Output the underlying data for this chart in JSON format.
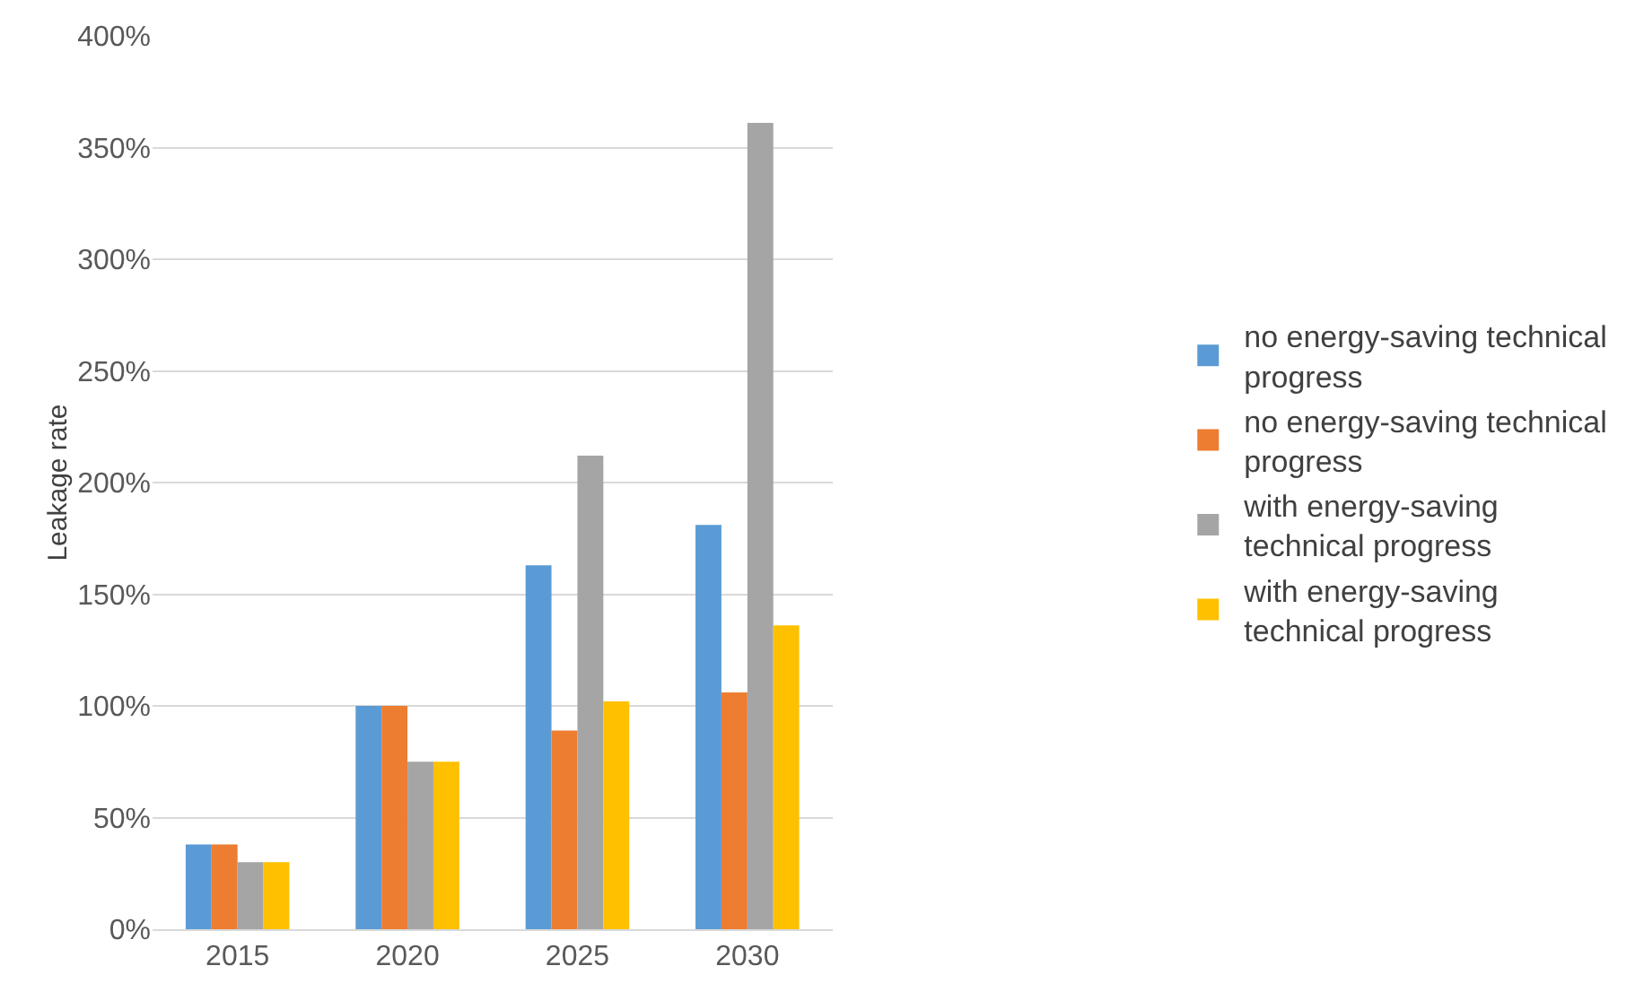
{
  "chart_data": {
    "type": "bar",
    "ylabel": "Leakage rate",
    "categories": [
      "2015",
      "2020",
      "2025",
      "2030"
    ],
    "series": [
      {
        "name": "no energy-saving technical progress",
        "color": "#5b9bd5",
        "values": [
          38,
          100,
          163,
          181
        ]
      },
      {
        "name": "no energy-saving technical progress",
        "color": "#ed7d31",
        "values": [
          38,
          100,
          89,
          106
        ]
      },
      {
        "name": "with energy-saving technical progress",
        "color": "#a5a5a5",
        "values": [
          30,
          75,
          212,
          361
        ]
      },
      {
        "name": "with energy-saving technical progress",
        "color": "#ffc000",
        "values": [
          30,
          75,
          102,
          136
        ]
      }
    ],
    "ylim": [
      0,
      400
    ],
    "yticks": [
      {
        "value": 0,
        "label": "0%"
      },
      {
        "value": 50,
        "label": "50%"
      },
      {
        "value": 100,
        "label": "100%"
      },
      {
        "value": 150,
        "label": "150%"
      },
      {
        "value": 200,
        "label": "200%"
      },
      {
        "value": 250,
        "label": "250%"
      },
      {
        "value": 300,
        "label": "300%"
      },
      {
        "value": 350,
        "label": "350%"
      },
      {
        "value": 400,
        "label": "400%"
      }
    ],
    "grid": "y",
    "legend": "right"
  }
}
